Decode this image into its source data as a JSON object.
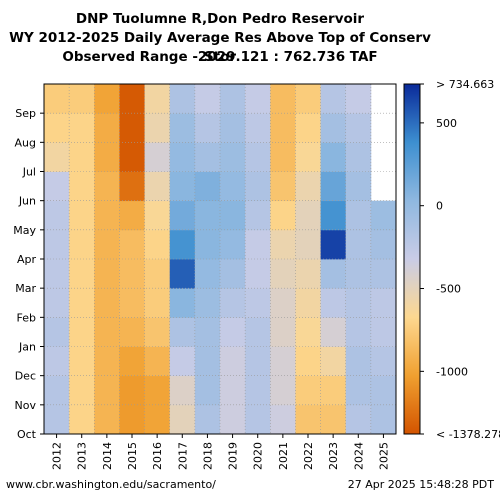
{
  "title_lines": [
    "DNP Tuolumne R,Don Pedro Reservoir",
    "WY 2012-2025 Daily Average Res Above Top of Conserv Stor",
    "Observed Range -2029.121 : 762.736 TAF"
  ],
  "footer": {
    "source": "www.cbr.washington.edu/sacramento/",
    "timestamp": "27 Apr 2025 15:48:28 PDT"
  },
  "chart_data": {
    "type": "heatmap",
    "x_categories": [
      "2012",
      "2013",
      "2014",
      "2015",
      "2016",
      "2017",
      "2018",
      "2019",
      "2020",
      "2021",
      "2022",
      "2023",
      "2024",
      "2025"
    ],
    "y_categories": [
      "Oct",
      "Nov",
      "Dec",
      "Jan",
      "Feb",
      "Mar",
      "Apr",
      "May",
      "Jun",
      "Jul",
      "Aug",
      "Sep"
    ],
    "colorbar": {
      "min": -1378.278,
      "max": 734.663,
      "ticks": [
        500,
        0,
        -500,
        -1000
      ],
      "top_label": "> 734.663",
      "bottom_label": "< -1378.278",
      "colors": [
        "#d35400",
        "#f0a030",
        "#fdd890",
        "#c9cce6",
        "#8fb8e0",
        "#3d8fd0",
        "#0a2a9a"
      ]
    },
    "grid": true,
    "monthly_values_by_water_year": [
      {
        "year": "2012",
        "values": [
          -200,
          -200,
          -250,
          -200,
          -250,
          -250,
          -250,
          -250,
          -300,
          -600,
          -700,
          -750
        ]
      },
      {
        "year": "2013",
        "values": [
          -700,
          -700,
          -700,
          -700,
          -700,
          -700,
          -700,
          -700,
          -700,
          -700,
          -700,
          -750
        ]
      },
      {
        "year": "2014",
        "values": [
          -900,
          -900,
          -900,
          -900,
          -900,
          -900,
          -900,
          -900,
          -900,
          -950,
          -950,
          -1000
        ]
      },
      {
        "year": "2015",
        "values": [
          -1050,
          -1050,
          -1000,
          -900,
          -850,
          -850,
          -850,
          -950,
          -1250,
          -1350,
          -1350,
          -1350
        ]
      },
      {
        "year": "2016",
        "values": [
          -1000,
          -1000,
          -900,
          -800,
          -750,
          -750,
          -700,
          -650,
          -550,
          -400,
          -550,
          -600
        ]
      },
      {
        "year": "2017",
        "values": [
          -500,
          -450,
          -300,
          -150,
          50,
          550,
          350,
          150,
          50,
          0,
          -50,
          -150
        ]
      },
      {
        "year": "2018",
        "values": [
          -150,
          -100,
          -100,
          -100,
          -50,
          0,
          50,
          50,
          100,
          -100,
          -200,
          -300
        ]
      },
      {
        "year": "2019",
        "values": [
          -350,
          -350,
          -350,
          -300,
          -200,
          -100,
          0,
          50,
          0,
          -50,
          -100,
          -150
        ]
      },
      {
        "year": "2020",
        "values": [
          -200,
          -200,
          -200,
          -200,
          -250,
          -300,
          -300,
          -200,
          -150,
          -200,
          -250,
          -300
        ]
      },
      {
        "year": "2021",
        "values": [
          -350,
          -400,
          -400,
          -450,
          -450,
          -500,
          -550,
          -700,
          -800,
          -850,
          -850,
          -850
        ]
      },
      {
        "year": "2022",
        "values": [
          -800,
          -750,
          -700,
          -650,
          -600,
          -550,
          -500,
          -500,
          -550,
          -650,
          -700,
          -750
        ]
      },
      {
        "year": "2023",
        "values": [
          -800,
          -750,
          -600,
          -400,
          -250,
          -100,
          650,
          350,
          200,
          50,
          -100,
          -200
        ]
      },
      {
        "year": "2024",
        "values": [
          -200,
          -150,
          -150,
          -200,
          -200,
          -150,
          -150,
          -150,
          -100,
          -150,
          -200,
          -300
        ]
      },
      {
        "year": "2025",
        "values": [
          -150,
          -150,
          -200,
          -250,
          -250,
          -150,
          -100,
          -50,
          null,
          null,
          null,
          null
        ]
      }
    ]
  }
}
